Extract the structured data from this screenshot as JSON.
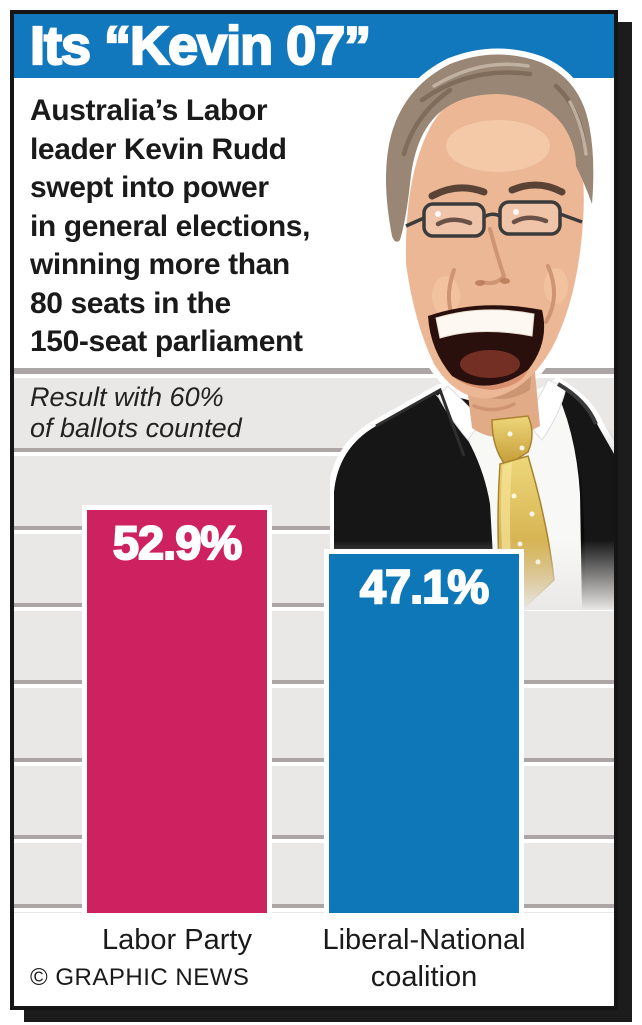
{
  "header": {
    "title": "Its “Kevin 07”",
    "bg_color": "#1278bd"
  },
  "intro": {
    "text": "Australia’s Labor\nleader Kevin Rudd\nswept into power\nin general elections,\nwinning more than\n80 seats in the\n150-seat parliament"
  },
  "note": {
    "text": "Result with 60%\nof ballots counted"
  },
  "chart_data": {
    "type": "bar",
    "title": "Result with 60% of ballots counted",
    "categories": [
      "Labor Party",
      "Liberal-National coalition"
    ],
    "category_labels_display": [
      "Labor Party",
      "Liberal-National\ncoalition"
    ],
    "values": [
      52.9,
      47.1
    ],
    "value_labels": [
      "52.9%",
      "47.1%"
    ],
    "bar_colors": [
      "#cd2160",
      "#0d77b8"
    ],
    "unit": "%",
    "baseline": 0,
    "grid": "horizontal",
    "grid_color": "#aba5a5",
    "plot_bg": "#eae8e6"
  },
  "portrait": {
    "description": "Kevin Rudd laughing — glasses, dark suit, white shirt, gold polka-dot tie"
  },
  "footer": {
    "copyright": "© GRAPHIC NEWS"
  }
}
